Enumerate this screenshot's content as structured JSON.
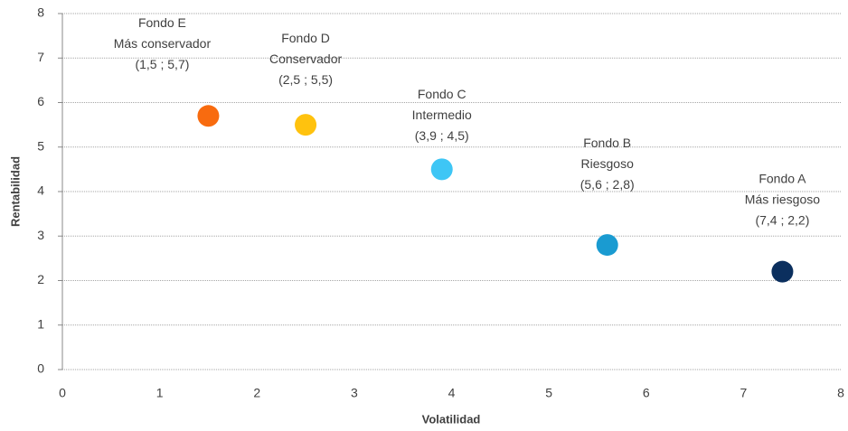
{
  "chart_data": {
    "type": "scatter",
    "x_label": "Volatilidad",
    "y_label": "Rentabilidad",
    "x": [
      7.4,
      5.6,
      3.9,
      2.5,
      1.5
    ],
    "values": [
      2.2,
      2.8,
      4.5,
      5.5,
      5.7
    ],
    "point_names": [
      "Fondo A",
      "Fondo B",
      "Fondo C",
      "Fondo D",
      "Fondo E"
    ],
    "point_descriptions": [
      "Más riesgoso",
      "Riesgoso",
      "Intermedio",
      "Conservador",
      "Más conservador"
    ],
    "value_labels": [
      "(7,4 ; 2,2)",
      "(5,6 ; 2,8)",
      "(3,9 ; 4,5)",
      "(2,5 ; 5,5)",
      "(1,5 ; 5,7)"
    ],
    "colors": [
      "#0b2f5e",
      "#1a9bd1",
      "#3ec6f5",
      "#ffc20e",
      "#f86b0f"
    ],
    "xlim": [
      0,
      8
    ],
    "xticks": [
      0,
      1,
      2,
      3,
      4,
      5,
      6,
      7,
      8
    ],
    "ylim": [
      0,
      8
    ],
    "yticks": [
      0,
      1,
      2,
      3,
      4,
      5,
      6,
      7,
      8
    ],
    "grid": true
  }
}
